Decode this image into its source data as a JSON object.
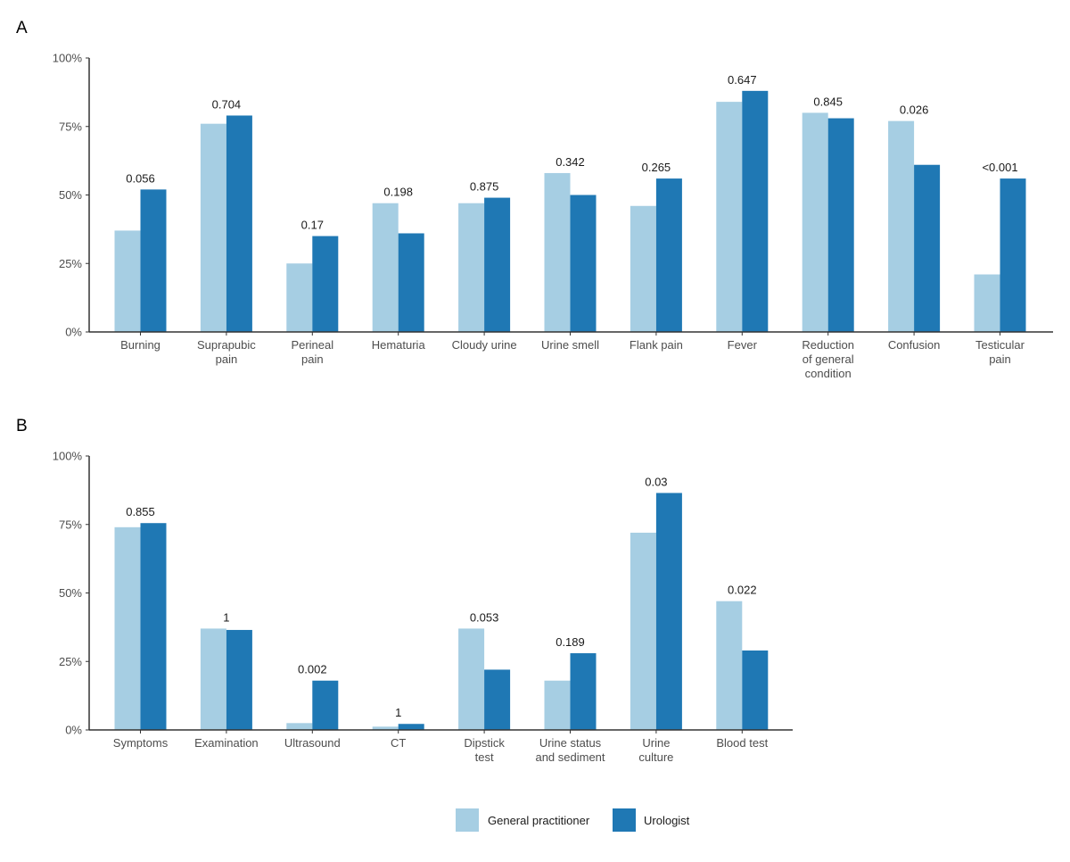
{
  "colors": {
    "gp": "#a6cee3",
    "uro": "#1f78b4",
    "axis": "#333333"
  },
  "legend": {
    "gp_label": "General practitioner",
    "uro_label": "Urologist"
  },
  "chart_data": [
    {
      "panel": "A",
      "type": "bar",
      "ylim": [
        0,
        100
      ],
      "yticks": [
        "0%",
        "25%",
        "50%",
        "75%",
        "100%"
      ],
      "categories": [
        [
          "Burning"
        ],
        [
          "Suprapubic",
          "pain"
        ],
        [
          "Perineal",
          "pain"
        ],
        [
          "Hematuria"
        ],
        [
          "Cloudy urine"
        ],
        [
          "Urine smell"
        ],
        [
          "Flank pain"
        ],
        [
          "Fever"
        ],
        [
          "Reduction",
          "of general",
          "condition"
        ],
        [
          "Confusion"
        ],
        [
          "Testicular",
          "pain"
        ]
      ],
      "series": [
        {
          "name": "General practitioner",
          "values": [
            37,
            76,
            25,
            47,
            47,
            58,
            46,
            84,
            80,
            77,
            21
          ]
        },
        {
          "name": "Urologist",
          "values": [
            52,
            79,
            35,
            36,
            49,
            50,
            56,
            88,
            78,
            61,
            56
          ]
        }
      ],
      "p_values": [
        "0.056",
        "0.704",
        "0.17",
        "0.198",
        "0.875",
        "0.342",
        "0.265",
        "0.647",
        "0.845",
        "0.026",
        "<0.001"
      ]
    },
    {
      "panel": "B",
      "type": "bar",
      "ylim": [
        0,
        100
      ],
      "yticks": [
        "0%",
        "25%",
        "50%",
        "75%",
        "100%"
      ],
      "categories": [
        [
          "Symptoms"
        ],
        [
          "Examination"
        ],
        [
          "Ultrasound"
        ],
        [
          "CT"
        ],
        [
          "Dipstick",
          "test"
        ],
        [
          "Urine status",
          "and sediment"
        ],
        [
          "Urine",
          "culture"
        ],
        [
          "Blood test"
        ]
      ],
      "series": [
        {
          "name": "General practitioner",
          "values": [
            74,
            37,
            2.5,
            1.2,
            37,
            18,
            72,
            47
          ]
        },
        {
          "name": "Urologist",
          "values": [
            75.5,
            36.5,
            18,
            2.2,
            22,
            28,
            86.5,
            29
          ]
        }
      ],
      "p_values": [
        "0.855",
        "1",
        "0.002",
        "1",
        "0.053",
        "0.189",
        "0.03",
        "0.022"
      ]
    }
  ]
}
